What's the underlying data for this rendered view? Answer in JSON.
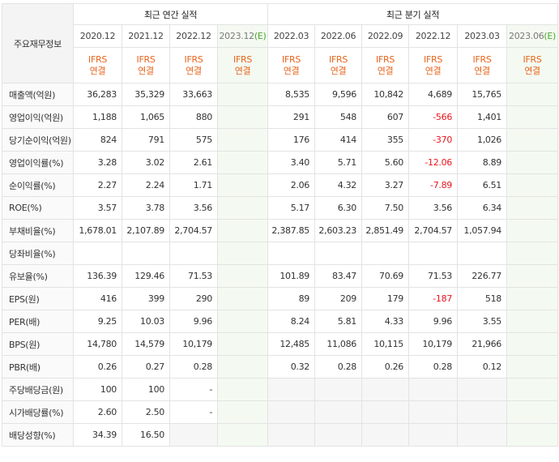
{
  "corner_label": "주요재무정보",
  "groups": {
    "annual": "최근 연간 실적",
    "quarterly": "최근 분기 실적"
  },
  "annual_periods": [
    {
      "label": "2020.12",
      "est": false
    },
    {
      "label": "2021.12",
      "est": false
    },
    {
      "label": "2022.12",
      "est": false
    },
    {
      "label": "2023.12",
      "est": true
    }
  ],
  "quarterly_periods": [
    {
      "label": "2022.03",
      "est": false
    },
    {
      "label": "2022.06",
      "est": false
    },
    {
      "label": "2022.09",
      "est": false
    },
    {
      "label": "2022.12",
      "est": false
    },
    {
      "label": "2023.03",
      "est": false
    },
    {
      "label": "2023.06",
      "est": true
    }
  ],
  "est_mark": "(E)",
  "ifrs_line1": "IFRS",
  "ifrs_line2": "연결",
  "rows": [
    {
      "label": "매출액(억원)",
      "values": [
        "36,283",
        "35,329",
        "33,663",
        "",
        "8,535",
        "9,596",
        "10,842",
        "4,689",
        "15,765",
        ""
      ]
    },
    {
      "label": "영업이익(억원)",
      "values": [
        "1,188",
        "1,065",
        "880",
        "",
        "291",
        "548",
        "607",
        "-566",
        "1,401",
        ""
      ]
    },
    {
      "label": "당기순이익(억원)",
      "values": [
        "824",
        "791",
        "575",
        "",
        "176",
        "414",
        "355",
        "-370",
        "1,026",
        ""
      ]
    },
    {
      "label": "영업이익률(%)",
      "values": [
        "3.28",
        "3.02",
        "2.61",
        "",
        "3.40",
        "5.71",
        "5.60",
        "-12.06",
        "8.89",
        ""
      ]
    },
    {
      "label": "순이익률(%)",
      "values": [
        "2.27",
        "2.24",
        "1.71",
        "",
        "2.06",
        "4.32",
        "3.27",
        "-7.89",
        "6.51",
        ""
      ]
    },
    {
      "label": "ROE(%)",
      "values": [
        "3.57",
        "3.78",
        "3.56",
        "",
        "5.17",
        "6.30",
        "7.50",
        "3.56",
        "6.34",
        ""
      ]
    },
    {
      "label": "부채비율(%)",
      "values": [
        "1,678.01",
        "2,107.89",
        "2,704.57",
        "",
        "2,387.85",
        "2,603.23",
        "2,851.49",
        "2,704.57",
        "1,057.94",
        ""
      ]
    },
    {
      "label": "당좌비율(%)",
      "values": [
        "",
        "",
        "",
        "",
        "",
        "",
        "",
        "",
        "",
        ""
      ]
    },
    {
      "label": "유보율(%)",
      "values": [
        "136.39",
        "129.46",
        "71.53",
        "",
        "101.89",
        "83.47",
        "70.69",
        "71.53",
        "226.77",
        ""
      ]
    },
    {
      "label": "EPS(원)",
      "values": [
        "416",
        "399",
        "290",
        "",
        "89",
        "209",
        "179",
        "-187",
        "518",
        ""
      ]
    },
    {
      "label": "PER(배)",
      "values": [
        "9.25",
        "10.03",
        "9.96",
        "",
        "8.24",
        "5.81",
        "4.33",
        "9.96",
        "3.55",
        ""
      ]
    },
    {
      "label": "BPS(원)",
      "values": [
        "14,780",
        "14,579",
        "10,179",
        "",
        "12,485",
        "11,086",
        "10,115",
        "10,179",
        "21,966",
        ""
      ]
    },
    {
      "label": "PBR(배)",
      "values": [
        "0.26",
        "0.27",
        "0.28",
        "",
        "0.32",
        "0.28",
        "0.26",
        "0.28",
        "0.12",
        ""
      ]
    },
    {
      "label": "주당배당금(원)",
      "values": [
        "100",
        "100",
        "-",
        "",
        "",
        "",
        "",
        "",
        "",
        ""
      ]
    },
    {
      "label": "시가배당률(%)",
      "values": [
        "2.60",
        "2.50",
        "-",
        "",
        "",
        "",
        "",
        "",
        "",
        ""
      ]
    },
    {
      "label": "배당성향(%)",
      "values": [
        "34.39",
        "16.50",
        "",
        "",
        "",
        "",
        "",
        "",
        "",
        ""
      ]
    }
  ]
}
